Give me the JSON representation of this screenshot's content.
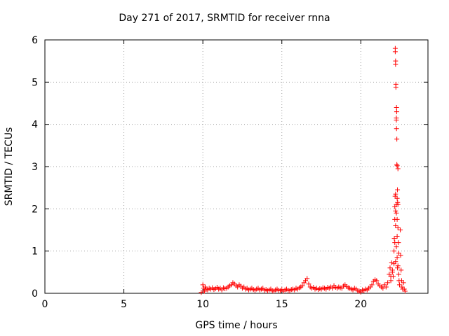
{
  "chart_data": {
    "type": "scatter",
    "title": "Day 271 of 2017, SRMTID for receiver rnna",
    "xlabel": "GPS time / hours",
    "ylabel": "SRMTID / TECUs",
    "xlim": [
      0,
      24.25
    ],
    "ylim": [
      0,
      6
    ],
    "xticks": [
      0,
      5,
      10,
      15,
      20
    ],
    "yticks": [
      0,
      1,
      2,
      3,
      4,
      5,
      6
    ],
    "grid": true,
    "marker": "plus",
    "color": "#ff0000",
    "series": [
      {
        "points": [
          [
            9.9,
            0.02
          ],
          [
            10.0,
            0.2
          ],
          [
            10.05,
            0.12
          ],
          [
            10.1,
            0.05
          ],
          [
            10.15,
            0.15
          ],
          [
            10.2,
            0.1
          ],
          [
            10.3,
            0.08
          ],
          [
            10.4,
            0.12
          ],
          [
            10.5,
            0.1
          ],
          [
            10.6,
            0.13
          ],
          [
            10.7,
            0.09
          ],
          [
            10.8,
            0.11
          ],
          [
            10.9,
            0.14
          ],
          [
            11.0,
            0.1
          ],
          [
            11.1,
            0.12
          ],
          [
            11.2,
            0.08
          ],
          [
            11.3,
            0.13
          ],
          [
            11.4,
            0.11
          ],
          [
            11.5,
            0.12
          ],
          [
            11.6,
            0.15
          ],
          [
            11.7,
            0.18
          ],
          [
            11.8,
            0.2
          ],
          [
            11.9,
            0.25
          ],
          [
            12.0,
            0.22
          ],
          [
            12.1,
            0.18
          ],
          [
            12.2,
            0.15
          ],
          [
            12.3,
            0.2
          ],
          [
            12.4,
            0.17
          ],
          [
            12.5,
            0.12
          ],
          [
            12.6,
            0.15
          ],
          [
            12.7,
            0.1
          ],
          [
            12.8,
            0.12
          ],
          [
            12.9,
            0.08
          ],
          [
            13.0,
            0.1
          ],
          [
            13.1,
            0.12
          ],
          [
            13.2,
            0.09
          ],
          [
            13.3,
            0.07
          ],
          [
            13.4,
            0.1
          ],
          [
            13.5,
            0.12
          ],
          [
            13.6,
            0.08
          ],
          [
            13.7,
            0.1
          ],
          [
            13.8,
            0.12
          ],
          [
            13.9,
            0.07
          ],
          [
            14.0,
            0.09
          ],
          [
            14.1,
            0.06
          ],
          [
            14.2,
            0.08
          ],
          [
            14.3,
            0.1
          ],
          [
            14.4,
            0.06
          ],
          [
            14.5,
            0.05
          ],
          [
            14.6,
            0.08
          ],
          [
            14.7,
            0.1
          ],
          [
            14.8,
            0.07
          ],
          [
            14.9,
            0.06
          ],
          [
            15.0,
            0.09
          ],
          [
            15.1,
            0.05
          ],
          [
            15.2,
            0.08
          ],
          [
            15.3,
            0.1
          ],
          [
            15.4,
            0.07
          ],
          [
            15.5,
            0.06
          ],
          [
            15.6,
            0.09
          ],
          [
            15.7,
            0.1
          ],
          [
            15.8,
            0.08
          ],
          [
            15.9,
            0.12
          ],
          [
            16.0,
            0.1
          ],
          [
            16.1,
            0.13
          ],
          [
            16.2,
            0.15
          ],
          [
            16.3,
            0.18
          ],
          [
            16.4,
            0.25
          ],
          [
            16.5,
            0.3
          ],
          [
            16.6,
            0.35
          ],
          [
            16.7,
            0.22
          ],
          [
            16.8,
            0.15
          ],
          [
            16.9,
            0.12
          ],
          [
            17.0,
            0.14
          ],
          [
            17.1,
            0.1
          ],
          [
            17.2,
            0.12
          ],
          [
            17.3,
            0.09
          ],
          [
            17.4,
            0.11
          ],
          [
            17.5,
            0.1
          ],
          [
            17.6,
            0.13
          ],
          [
            17.7,
            0.12
          ],
          [
            17.8,
            0.1
          ],
          [
            17.9,
            0.14
          ],
          [
            18.0,
            0.12
          ],
          [
            18.1,
            0.15
          ],
          [
            18.2,
            0.12
          ],
          [
            18.3,
            0.18
          ],
          [
            18.4,
            0.14
          ],
          [
            18.5,
            0.12
          ],
          [
            18.6,
            0.15
          ],
          [
            18.7,
            0.13
          ],
          [
            18.8,
            0.12
          ],
          [
            18.9,
            0.17
          ],
          [
            19.0,
            0.2
          ],
          [
            19.1,
            0.16
          ],
          [
            19.2,
            0.13
          ],
          [
            19.3,
            0.12
          ],
          [
            19.4,
            0.1
          ],
          [
            19.5,
            0.08
          ],
          [
            19.6,
            0.12
          ],
          [
            19.7,
            0.1
          ],
          [
            19.8,
            0.06
          ],
          [
            19.9,
            0.05
          ],
          [
            20.0,
            0.03
          ],
          [
            20.1,
            0.08
          ],
          [
            20.2,
            0.06
          ],
          [
            20.3,
            0.1
          ],
          [
            20.4,
            0.08
          ],
          [
            20.5,
            0.12
          ],
          [
            20.6,
            0.15
          ],
          [
            20.7,
            0.2
          ],
          [
            20.8,
            0.28
          ],
          [
            20.9,
            0.32
          ],
          [
            21.0,
            0.3
          ],
          [
            21.1,
            0.22
          ],
          [
            21.2,
            0.18
          ],
          [
            21.3,
            0.15
          ],
          [
            21.4,
            0.12
          ],
          [
            21.5,
            0.2
          ],
          [
            21.6,
            0.15
          ],
          [
            21.7,
            0.25
          ],
          [
            21.8,
            0.45
          ],
          [
            21.85,
            0.6
          ],
          [
            21.9,
            0.3
          ],
          [
            21.95,
            0.72
          ],
          [
            22.0,
            0.5
          ],
          [
            22.05,
            0.4
          ],
          [
            22.1,
            1.0
          ],
          [
            22.12,
            1.3
          ],
          [
            22.15,
            2.05
          ],
          [
            22.17,
            2.3
          ],
          [
            22.18,
            5.8
          ],
          [
            22.2,
            5.5
          ],
          [
            22.22,
            4.95
          ],
          [
            22.25,
            4.1
          ],
          [
            22.28,
            3.05
          ],
          [
            22.3,
            1.75
          ],
          [
            22.32,
            0.6
          ],
          [
            22.35,
            2.1
          ],
          [
            22.38,
            1.2
          ],
          [
            22.4,
            0.45
          ],
          [
            22.42,
            0.3
          ],
          [
            22.45,
            0.2
          ],
          [
            22.5,
            1.5
          ],
          [
            22.52,
            0.9
          ],
          [
            22.55,
            0.55
          ],
          [
            22.58,
            0.3
          ],
          [
            22.6,
            0.15
          ],
          [
            22.65,
            0.1
          ],
          [
            22.7,
            0.25
          ],
          [
            22.75,
            0.1
          ],
          [
            22.8,
            0.05
          ],
          [
            22.18,
            5.72
          ],
          [
            22.2,
            5.42
          ],
          [
            22.22,
            4.88
          ],
          [
            22.26,
            4.4
          ],
          [
            22.27,
            4.3
          ],
          [
            22.25,
            4.15
          ],
          [
            22.26,
            3.9
          ],
          [
            22.28,
            3.65
          ],
          [
            22.3,
            3.02
          ],
          [
            22.35,
            2.95
          ],
          [
            22.32,
            2.45
          ],
          [
            22.2,
            2.35
          ],
          [
            22.3,
            2.25
          ],
          [
            22.25,
            2.1
          ],
          [
            22.33,
            2.15
          ],
          [
            22.2,
            1.95
          ],
          [
            22.25,
            1.9
          ],
          [
            22.15,
            1.75
          ],
          [
            22.35,
            1.55
          ],
          [
            22.2,
            1.6
          ],
          [
            22.3,
            1.35
          ],
          [
            22.15,
            1.2
          ],
          [
            22.25,
            1.1
          ],
          [
            22.4,
            0.95
          ],
          [
            22.3,
            0.85
          ],
          [
            22.2,
            0.75
          ],
          [
            22.1,
            0.7
          ],
          [
            22.35,
            0.65
          ],
          [
            22.0,
            0.55
          ],
          [
            21.9,
            0.4
          ]
        ]
      }
    ]
  }
}
